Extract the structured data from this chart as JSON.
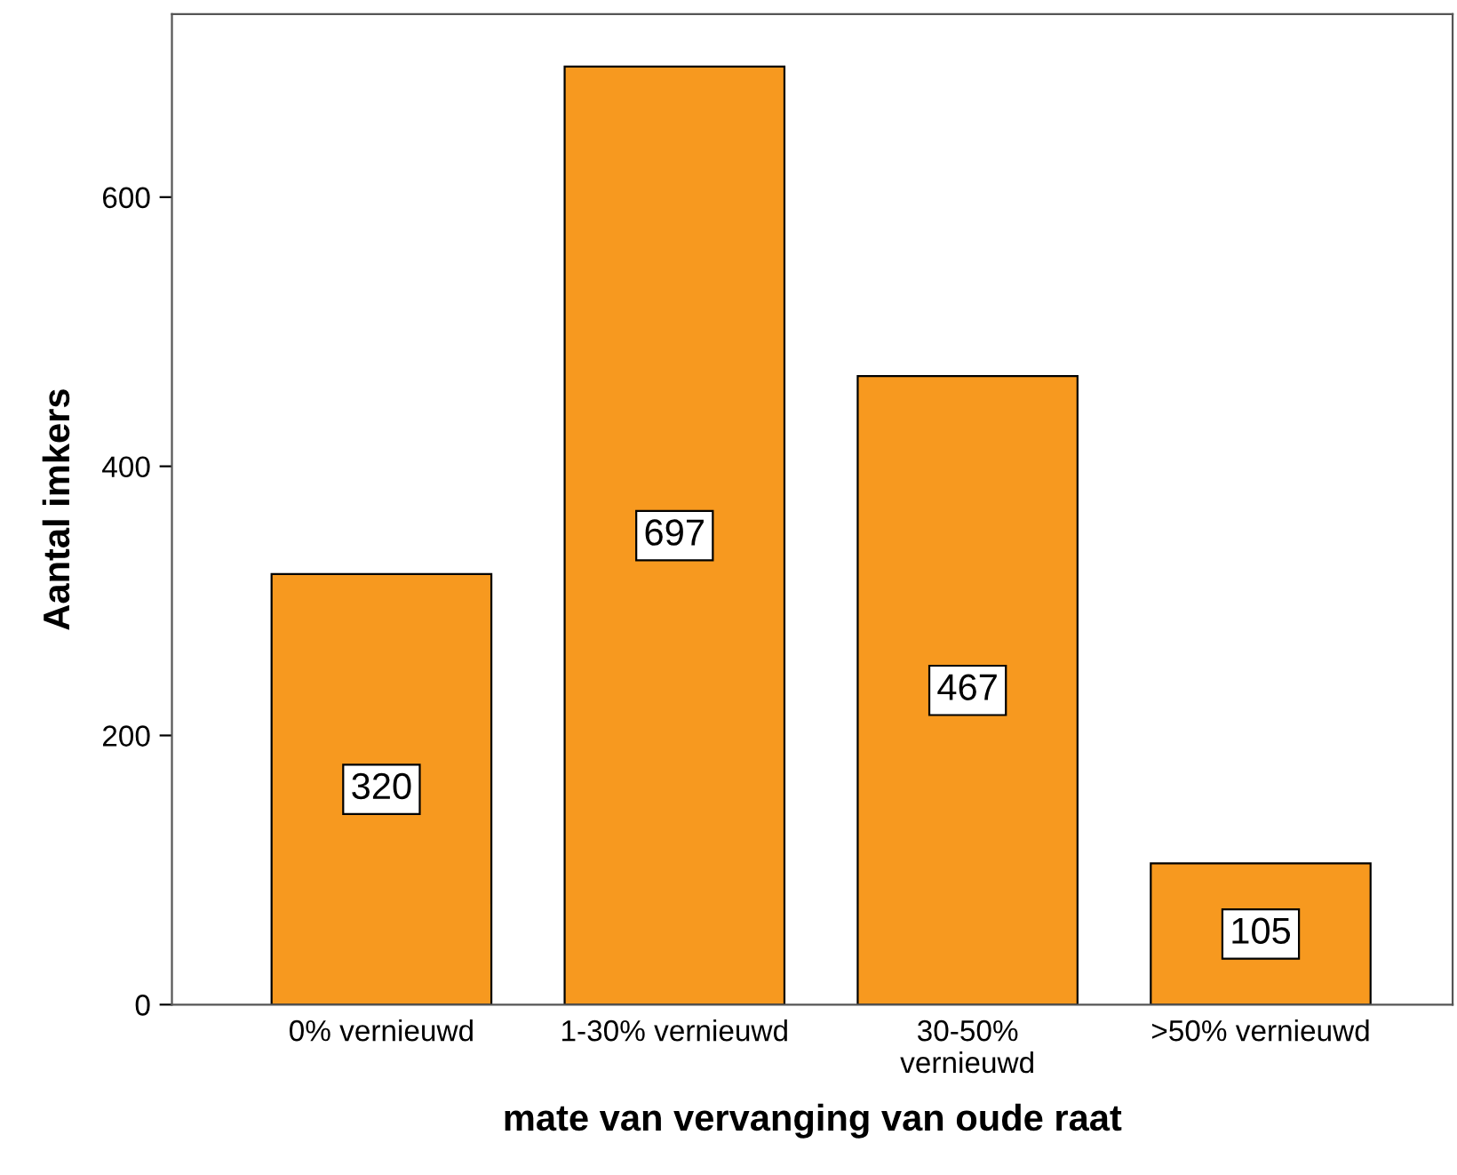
{
  "chart_data": {
    "type": "bar",
    "xlabel": "mate van vervanging van oude raat",
    "ylabel": "Aantal imkers",
    "categories": [
      "0% vernieuwd",
      "1-30% vernieuwd",
      "30-50%\nvernieuwd",
      ">50% vernieuwd"
    ],
    "values": [
      320,
      697,
      467,
      105
    ],
    "color": "#f7991f",
    "ylim": [
      0,
      736
    ],
    "yticks": [
      0,
      200,
      400,
      600
    ],
    "grid": false,
    "data_labels": true
  }
}
